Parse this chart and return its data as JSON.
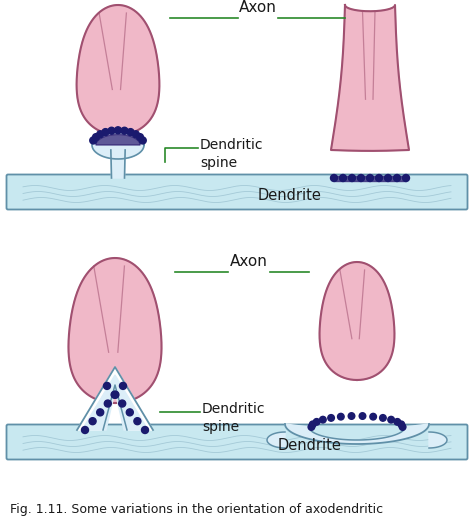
{
  "bg_color": "#ffffff",
  "axon_color": "#f0b8c8",
  "axon_outline": "#a05070",
  "dendrite_color": "#c8e8f0",
  "dendrite_outline": "#6090a8",
  "spine_color": "#dceef8",
  "spine_outline": "#6090a8",
  "psd_color": "#2a1a6e",
  "dot_color": "#1a1a6e",
  "line_color": "#2a8a2a",
  "text_color": "#1a1a1a",
  "caption": "Fig. 1.11. Some variations in the orientation of axodendritic",
  "label_axon": "Axon",
  "label_dendrite": "Dendrite",
  "label_dendritic_spine": "Dendritic\nspine",
  "fig_width": 4.74,
  "fig_height": 5.23
}
